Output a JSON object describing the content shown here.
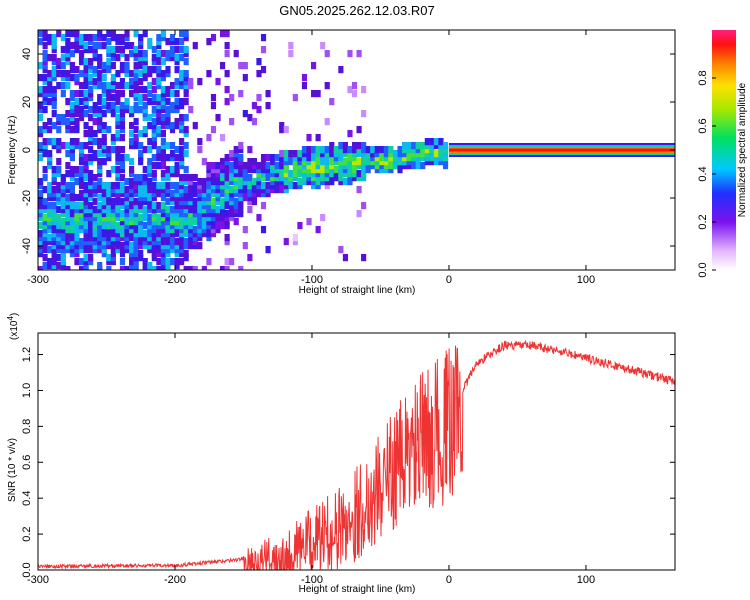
{
  "title": "GN05.2025.262.12.03.R07",
  "chart_data": [
    {
      "type": "heatmap",
      "xlabel": "Height of straight line (km)",
      "ylabel": "Frequency (Hz)",
      "xlim": [
        -300,
        165
      ],
      "ylim": [
        -50,
        50
      ],
      "xticks": [
        -300,
        -200,
        -100,
        0,
        100
      ],
      "yticks": [
        -40,
        -20,
        0,
        20,
        40
      ],
      "colorbar": {
        "label": "Normalized spectral amplitude",
        "range": [
          0,
          1
        ],
        "ticks": [
          0.0,
          0.2,
          0.4,
          0.6,
          0.8
        ],
        "tick_labels": [
          "0.0",
          "0.2",
          "0.4",
          "0.6",
          "0.8"
        ]
      },
      "trend": [
        {
          "x": -185,
          "y": -28
        },
        {
          "x": -160,
          "y": -14
        },
        {
          "x": -120,
          "y": -8
        },
        {
          "x": -80,
          "y": -5
        },
        {
          "x": -40,
          "y": -3
        },
        {
          "x": -10,
          "y": 0
        },
        {
          "x": 0,
          "y": -2
        },
        {
          "x": 165,
          "y": 0
        }
      ]
    },
    {
      "type": "line",
      "xlabel": "Height of straight line (km)",
      "ylabel": "SNR (10 * v/v)",
      "exponent_label": "(x10",
      "exponent_power": "4",
      "exponent_close": ")",
      "xlim": [
        -300,
        165
      ],
      "ylim": [
        0,
        1.32
      ],
      "xticks": [
        -300,
        -200,
        -100,
        0,
        100
      ],
      "yticks": [
        0.0,
        0.2,
        0.4,
        0.6,
        0.8,
        1.0,
        1.2
      ],
      "ytick_labels": [
        "0.0",
        "0.2",
        "0.4",
        "0.6",
        "0.8",
        "1.0",
        "1.2"
      ],
      "series": [
        {
          "name": "SNR",
          "color": "#ee3333",
          "points": [
            {
              "x": -300,
              "y": 0.01
            },
            {
              "x": -200,
              "y": 0.015
            },
            {
              "x": -150,
              "y": 0.05
            },
            {
              "x": -120,
              "y": 0.1
            },
            {
              "x": -100,
              "y": 0.18
            },
            {
              "x": -80,
              "y": 0.25
            },
            {
              "x": -60,
              "y": 0.4
            },
            {
              "x": -40,
              "y": 0.6
            },
            {
              "x": -20,
              "y": 0.75
            },
            {
              "x": 0,
              "y": 0.85
            },
            {
              "x": 20,
              "y": 1.15
            },
            {
              "x": 40,
              "y": 1.25
            },
            {
              "x": 60,
              "y": 1.25
            },
            {
              "x": 80,
              "y": 1.22
            },
            {
              "x": 100,
              "y": 1.18
            },
            {
              "x": 130,
              "y": 1.12
            },
            {
              "x": 165,
              "y": 1.05
            }
          ]
        }
      ]
    }
  ]
}
